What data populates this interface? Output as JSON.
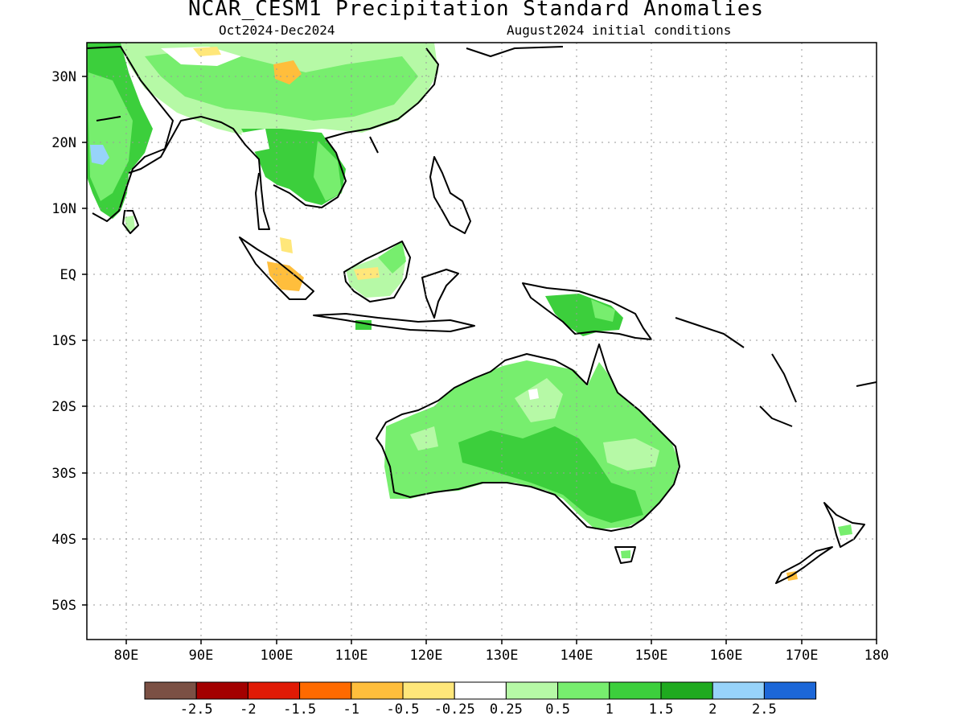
{
  "title": "NCAR_CESM1 Precipitation Standard Anomalies",
  "subtitle_left": "Oct2024-Dec2024",
  "subtitle_right": "August2024 initial conditions",
  "lat_labels": [
    "30N",
    "20N",
    "10N",
    "EQ",
    "10S",
    "20S",
    "30S",
    "40S",
    "50S"
  ],
  "lon_labels": [
    "80E",
    "90E",
    "100E",
    "110E",
    "120E",
    "130E",
    "140E",
    "150E",
    "160E",
    "170E",
    "180"
  ],
  "colorbar": {
    "colors": [
      "#7b5044",
      "#a30000",
      "#e01a05",
      "#ff6a00",
      "#ffbe3c",
      "#ffe77a",
      "#ffffff",
      "#b6f9a6",
      "#77ee6e",
      "#3ccf3c",
      "#1faa1f",
      "#97d3fa",
      "#1c67d8"
    ],
    "labels": [
      "-2.5",
      "-2",
      "-1.5",
      "-1",
      "-0.5",
      "-0.25",
      "0.25",
      "0.5",
      "1",
      "1.5",
      "2",
      "2.5"
    ]
  },
  "region_colors": {
    "land_outline": "#000000",
    "grid_dots": "#9a9a9a"
  }
}
